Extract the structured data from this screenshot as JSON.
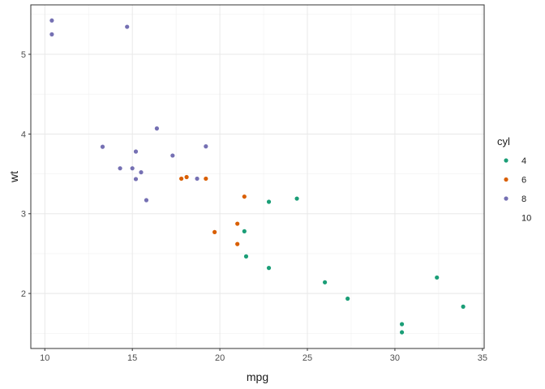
{
  "chart_data": {
    "type": "scatter",
    "title": "",
    "xlabel": "mpg",
    "ylabel": "wt",
    "xlim": [
      9.2,
      35.1
    ],
    "ylim": [
      1.31,
      5.62
    ],
    "x_ticks": [
      10,
      15,
      20,
      25,
      30,
      35
    ],
    "y_ticks": [
      2,
      3,
      4,
      5
    ],
    "x_tick_labels": [
      "10",
      "15",
      "20",
      "25",
      "30",
      "35"
    ],
    "y_tick_labels": [
      "2",
      "3",
      "4",
      "5"
    ],
    "grid": true,
    "legend": {
      "title": "cyl",
      "placement": "right",
      "entries": [
        {
          "label": "4",
          "color": "#1b9e77"
        },
        {
          "label": "6",
          "color": "#d95f02"
        },
        {
          "label": "8",
          "color": "#7570b3"
        },
        {
          "label": "10",
          "color": null
        }
      ]
    },
    "series": [
      {
        "name": "4",
        "color": "#1b9e77",
        "points": [
          [
            22.8,
            2.32
          ],
          [
            24.4,
            3.19
          ],
          [
            22.8,
            3.15
          ],
          [
            32.4,
            2.2
          ],
          [
            30.4,
            1.615
          ],
          [
            33.9,
            1.835
          ],
          [
            21.5,
            2.465
          ],
          [
            27.3,
            1.935
          ],
          [
            26.0,
            2.14
          ],
          [
            30.4,
            1.513
          ],
          [
            21.4,
            2.78
          ]
        ]
      },
      {
        "name": "6",
        "color": "#d95f02",
        "points": [
          [
            21.0,
            2.62
          ],
          [
            21.0,
            2.875
          ],
          [
            21.4,
            3.215
          ],
          [
            18.1,
            3.46
          ],
          [
            19.2,
            3.44
          ],
          [
            17.8,
            3.44
          ],
          [
            19.7,
            2.77
          ]
        ]
      },
      {
        "name": "8",
        "color": "#7570b3",
        "points": [
          [
            18.7,
            3.44
          ],
          [
            14.3,
            3.57
          ],
          [
            16.4,
            4.07
          ],
          [
            17.3,
            3.73
          ],
          [
            15.2,
            3.78
          ],
          [
            10.4,
            5.25
          ],
          [
            10.4,
            5.424
          ],
          [
            14.7,
            5.345
          ],
          [
            15.5,
            3.52
          ],
          [
            15.2,
            3.435
          ],
          [
            13.3,
            3.84
          ],
          [
            19.2,
            3.845
          ],
          [
            15.8,
            3.17
          ],
          [
            15.0,
            3.57
          ]
        ]
      }
    ]
  }
}
